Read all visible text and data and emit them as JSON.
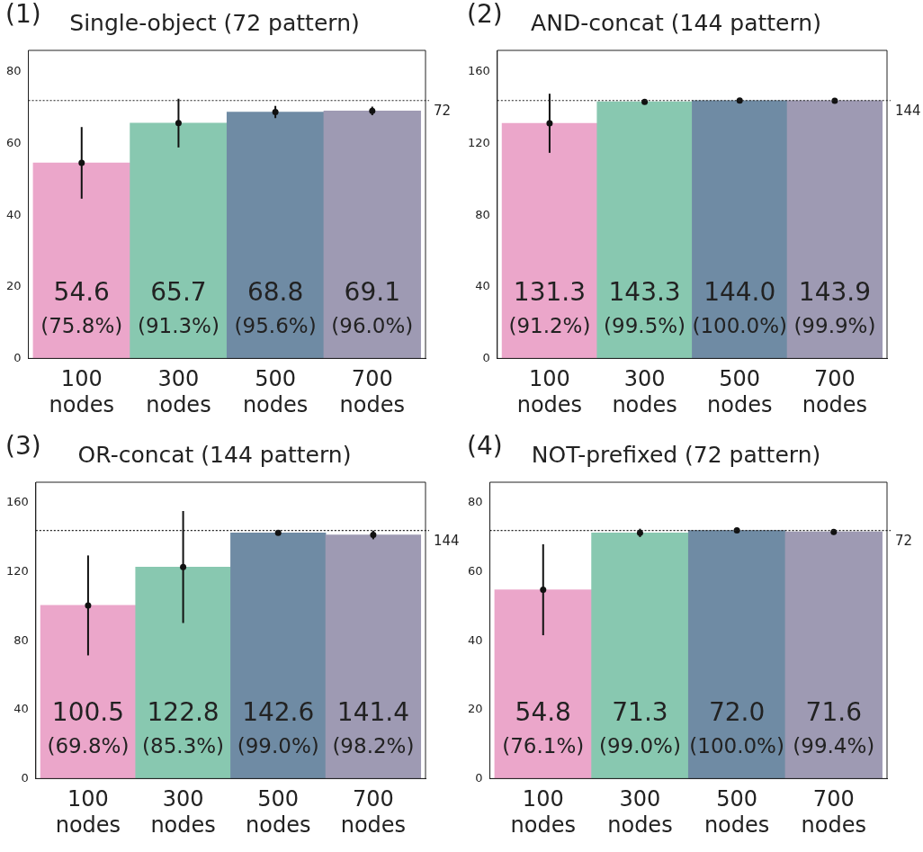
{
  "chart_data": [
    {
      "type": "bar",
      "title": "Single-object (72 pattern)",
      "annotations": [
        "(1)"
      ],
      "categories": [
        "100 nodes",
        "300 nodes",
        "500 nodes",
        "700 nodes"
      ],
      "ylim": [
        0,
        86
      ],
      "yticks": [
        0,
        20,
        40,
        60,
        80
      ],
      "ref_lines": [
        {
          "axis": "y",
          "value": 72,
          "label": "72",
          "line_style": "dotted"
        }
      ],
      "series": [
        {
          "type": "bar",
          "values": [
            54.6,
            65.7,
            68.8,
            69.1
          ],
          "errors": [
            10,
            6.8,
            1.7,
            1.2
          ],
          "colors": [
            "#eba6ca",
            "#88c8b0",
            "#6f8ba4",
            "#9e9ab3"
          ],
          "value_labels": [
            "54.6\n(75.8%)",
            "65.7\n(91.3%)",
            "68.8\n(95.6%)",
            "69.1\n(96.0%)"
          ]
        },
        {
          "type": "scatter",
          "x": [
            "100 nodes",
            "300 nodes",
            "500 nodes",
            "700 nodes"
          ],
          "values": [
            54.6,
            65.7,
            68.8,
            69.1
          ],
          "color": "#111111",
          "marker": "circle"
        }
      ]
    },
    {
      "type": "bar",
      "title": "AND-concat (144 pattern)",
      "annotations": [
        "(2)"
      ],
      "categories": [
        "100 nodes",
        "300 nodes",
        "500 nodes",
        "700 nodes"
      ],
      "ylim": [
        0,
        172
      ],
      "yticks": [
        0,
        40,
        80,
        120,
        160
      ],
      "ref_lines": [
        {
          "axis": "y",
          "value": 144,
          "label": "144",
          "line_style": "dotted"
        }
      ],
      "series": [
        {
          "type": "bar",
          "values": [
            131.3,
            143.3,
            144.0,
            143.9
          ],
          "errors": [
            16.5,
            0.8,
            null,
            null
          ],
          "colors": [
            "#eba6ca",
            "#88c8b0",
            "#6f8ba4",
            "#9e9ab3"
          ],
          "value_labels": [
            "131.3\n(91.2%)",
            "143.3\n(99.5%)",
            "144.0\n(100.0%)",
            "143.9\n(99.9%)"
          ]
        },
        {
          "type": "scatter",
          "x": [
            "100 nodes",
            "300 nodes",
            "500 nodes",
            "700 nodes"
          ],
          "values": [
            131.3,
            143.3,
            144.0,
            143.9
          ],
          "color": "#111111",
          "marker": "circle"
        }
      ]
    },
    {
      "type": "bar",
      "title": "OR-concat (144 pattern)",
      "annotations": [
        "(3)"
      ],
      "categories": [
        "100 nodes",
        "300 nodes",
        "500 nodes",
        "700 nodes"
      ],
      "ylim": [
        0,
        172
      ],
      "yticks": [
        0,
        40,
        80,
        120,
        160
      ],
      "ref_lines": [
        {
          "axis": "y",
          "value": 144,
          "label": "144",
          "line_style": "dotted"
        }
      ],
      "series": [
        {
          "type": "bar",
          "values": [
            100.5,
            122.8,
            142.6,
            141.4
          ],
          "errors": [
            29,
            32.5,
            0.8,
            2.5
          ],
          "colors": [
            "#eba6ca",
            "#88c8b0",
            "#6f8ba4",
            "#9e9ab3"
          ],
          "value_labels": [
            "100.5\n(69.8%)",
            "122.8\n(85.3%)",
            "142.6\n(99.0%)",
            "141.4\n(98.2%)"
          ]
        },
        {
          "type": "scatter",
          "x": [
            "100 nodes",
            "300 nodes",
            "500 nodes",
            "700 nodes"
          ],
          "values": [
            100.5,
            122.8,
            142.6,
            141.4
          ],
          "color": "#111111",
          "marker": "circle"
        }
      ]
    },
    {
      "type": "bar",
      "title": "NOT-prefixed (72 pattern)",
      "annotations": [
        "(4)"
      ],
      "categories": [
        "100 nodes",
        "300 nodes",
        "500 nodes",
        "700 nodes"
      ],
      "ylim": [
        0,
        86
      ],
      "yticks": [
        0,
        20,
        40,
        60,
        80
      ],
      "ref_lines": [
        {
          "axis": "y",
          "value": 72,
          "label": "72",
          "line_style": "dotted"
        }
      ],
      "series": [
        {
          "type": "bar",
          "values": [
            54.8,
            71.3,
            72.0,
            71.6
          ],
          "errors": [
            13.2,
            1.2,
            null,
            0.8
          ],
          "colors": [
            "#eba6ca",
            "#88c8b0",
            "#6f8ba4",
            "#9e9ab3"
          ],
          "value_labels": [
            "54.8\n(76.1%)",
            "71.3\n(99.0%)",
            "72.0\n(100.0%)",
            "71.6\n(99.4%)"
          ]
        },
        {
          "type": "scatter",
          "x": [
            "100 nodes",
            "300 nodes",
            "500 nodes",
            "700 nodes"
          ],
          "values": [
            54.8,
            71.3,
            72.0,
            71.6
          ],
          "color": "#111111",
          "marker": "circle"
        }
      ]
    }
  ]
}
